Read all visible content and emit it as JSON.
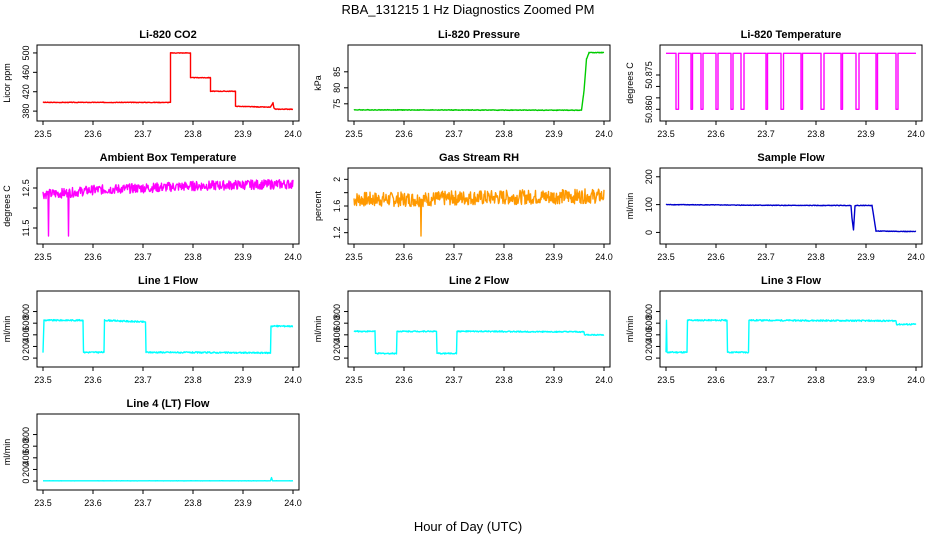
{
  "figure": {
    "title": "RBA_131215  1 Hz Diagnostics Zoomed PM",
    "xlabel": "Hour of Day (UTC)"
  },
  "chart_data": [
    {
      "type": "line",
      "title": "Li-820 CO2",
      "ylabel": "Licor ppm",
      "color": "#ff0000",
      "xlim": [
        23.5,
        24.0
      ],
      "ylim": [
        372,
        504
      ],
      "xticks": [
        "23.5",
        "23.6",
        "23.7",
        "23.8",
        "23.9",
        "24.0"
      ],
      "yticks": [
        380,
        420,
        460,
        500
      ],
      "noise": 0.6,
      "x": [
        23.5,
        23.755,
        23.755,
        23.795,
        23.795,
        23.835,
        23.835,
        23.885,
        23.885,
        23.955,
        23.96,
        23.962,
        23.965,
        24.0
      ],
      "y": [
        398,
        398,
        500,
        500,
        449,
        449,
        421,
        421,
        390,
        388,
        397,
        386,
        384,
        384
      ]
    },
    {
      "type": "line",
      "title": "Li-820 Pressure",
      "ylabel": "kPa",
      "color": "#00cc00",
      "xlim": [
        23.5,
        24.0
      ],
      "ylim": [
        71.5,
        91.5
      ],
      "xticks": [
        "23.5",
        "23.6",
        "23.7",
        "23.8",
        "23.9",
        "24.0"
      ],
      "yticks": [
        75,
        80,
        85
      ],
      "noise": 0.1,
      "x": [
        23.5,
        23.945,
        23.955,
        23.96,
        23.965,
        23.97,
        24.0
      ],
      "y": [
        73.1,
        73.0,
        73.0,
        79,
        89,
        91,
        91
      ]
    },
    {
      "type": "line",
      "title": "Li-820 Temperature",
      "ylabel": "degrees C",
      "color": "#ff00ff",
      "xlim": [
        23.5,
        24.0
      ],
      "ylim": [
        50.8575,
        50.8855
      ],
      "xticks": [
        "23.5",
        "23.6",
        "23.7",
        "23.8",
        "23.9",
        "24.0"
      ],
      "yticks": [
        50.86,
        50.865,
        50.87,
        50.875
      ],
      "ytick_labels": [
        "50.860",
        "",
        "",
        "50.875"
      ],
      "noise": 0,
      "x": [
        23.5,
        23.52,
        23.52,
        23.525,
        23.525,
        23.55,
        23.55,
        23.553,
        23.553,
        23.57,
        23.57,
        23.574,
        23.574,
        23.6,
        23.6,
        23.604,
        23.604,
        23.63,
        23.63,
        23.634,
        23.634,
        23.65,
        23.65,
        23.656,
        23.656,
        23.7,
        23.7,
        23.703,
        23.703,
        23.73,
        23.73,
        23.735,
        23.735,
        23.77,
        23.77,
        23.773,
        23.773,
        23.81,
        23.81,
        23.816,
        23.816,
        23.85,
        23.85,
        23.853,
        23.853,
        23.88,
        23.88,
        23.886,
        23.886,
        23.92,
        23.92,
        23.923,
        23.923,
        23.96,
        23.96,
        23.964,
        23.964,
        24.0
      ],
      "y": [
        50.8845,
        50.8845,
        50.86,
        50.86,
        50.8845,
        50.8845,
        50.86,
        50.86,
        50.8845,
        50.8845,
        50.86,
        50.86,
        50.8845,
        50.8845,
        50.86,
        50.86,
        50.8845,
        50.8845,
        50.86,
        50.86,
        50.8845,
        50.8845,
        50.86,
        50.86,
        50.8845,
        50.8845,
        50.86,
        50.86,
        50.8845,
        50.8845,
        50.86,
        50.86,
        50.8845,
        50.8845,
        50.86,
        50.86,
        50.8845,
        50.8845,
        50.86,
        50.86,
        50.8845,
        50.8845,
        50.86,
        50.86,
        50.8845,
        50.8845,
        50.86,
        50.86,
        50.8845,
        50.8845,
        50.86,
        50.86,
        50.8845,
        50.8845,
        50.86,
        50.86,
        50.8845,
        50.8845
      ]
    },
    {
      "type": "line",
      "title": "Ambient Box Temperature",
      "ylabel": "degrees C",
      "color": "#ff00ff",
      "xlim": [
        23.5,
        24.0
      ],
      "ylim": [
        11.25,
        12.85
      ],
      "xticks": [
        "23.5",
        "23.6",
        "23.7",
        "23.8",
        "23.9",
        "24.0"
      ],
      "yticks": [
        11.5,
        12.0,
        12.5
      ],
      "ytick_labels": [
        "11.5",
        "",
        "12.5"
      ],
      "noise": 0.12,
      "x": [
        23.5,
        23.51,
        23.511,
        23.512,
        23.55,
        23.551,
        23.552,
        23.6,
        23.7,
        23.8,
        23.9,
        24.0
      ],
      "y": [
        12.35,
        12.35,
        11.3,
        12.35,
        12.38,
        11.3,
        12.38,
        12.45,
        12.5,
        12.55,
        12.58,
        12.6
      ]
    },
    {
      "type": "line",
      "title": "Gas Stream RH",
      "ylabel": "percent",
      "color": "#ff9900",
      "xlim": [
        23.5,
        24.0
      ],
      "ylim": [
        1.12,
        2.08
      ],
      "xticks": [
        "23.5",
        "23.6",
        "23.7",
        "23.8",
        "23.9",
        "24.0"
      ],
      "yticks": [
        1.2,
        1.6,
        2.0
      ],
      "yminor": [
        1.4,
        1.8
      ],
      "noise": 0.11,
      "x": [
        23.5,
        23.633,
        23.634,
        23.635,
        23.7,
        23.8,
        23.9,
        24.0
      ],
      "y": [
        1.7,
        1.7,
        1.15,
        1.7,
        1.72,
        1.73,
        1.74,
        1.75
      ]
    },
    {
      "type": "line",
      "title": "Sample Flow",
      "ylabel": "ml/min",
      "color": "#0000cc",
      "xlim": [
        23.5,
        24.0
      ],
      "ylim": [
        -20,
        210
      ],
      "xticks": [
        "23.5",
        "23.6",
        "23.7",
        "23.8",
        "23.9",
        "24.0"
      ],
      "yticks": [
        0,
        100,
        200
      ],
      "noise": 1.0,
      "x": [
        23.5,
        23.75,
        23.87,
        23.872,
        23.875,
        23.878,
        23.88,
        23.912,
        23.92,
        24.0
      ],
      "y": [
        100,
        97,
        97,
        50,
        10,
        95,
        97,
        97,
        5,
        3
      ]
    },
    {
      "type": "line",
      "title": "Line 1 Flow",
      "ylabel": "ml/min",
      "color": "#00ffff",
      "xlim": [
        23.5,
        24.0
      ],
      "ylim": [
        -50,
        1050
      ],
      "xticks": [
        "23.5",
        "23.6",
        "23.7",
        "23.8",
        "23.9",
        "24.0"
      ],
      "yticks": [
        0,
        200,
        400,
        600,
        800
      ],
      "noise": 12,
      "x": [
        23.5,
        23.502,
        23.503,
        23.58,
        23.581,
        23.622,
        23.623,
        23.705,
        23.706,
        23.955,
        23.956,
        24.0
      ],
      "y": [
        100,
        650,
        650,
        650,
        100,
        100,
        650,
        620,
        100,
        90,
        550,
        550
      ]
    },
    {
      "type": "line",
      "title": "Line 2 Flow",
      "ylabel": "ml/min",
      "color": "#00ffff",
      "xlim": [
        23.5,
        24.0
      ],
      "ylim": [
        -50,
        1050
      ],
      "xticks": [
        "23.5",
        "23.6",
        "23.7",
        "23.8",
        "23.9",
        "24.0"
      ],
      "yticks": [
        0,
        200,
        400,
        600,
        800
      ],
      "noise": 10,
      "x": [
        23.5,
        23.542,
        23.543,
        23.585,
        23.586,
        23.665,
        23.666,
        23.705,
        23.706,
        23.96,
        23.961,
        24.0
      ],
      "y": [
        460,
        460,
        80,
        80,
        460,
        460,
        80,
        80,
        460,
        450,
        400,
        400
      ]
    },
    {
      "type": "line",
      "title": "Line 3 Flow",
      "ylabel": "ml/min",
      "color": "#00ffff",
      "xlim": [
        23.5,
        24.0
      ],
      "ylim": [
        -50,
        1050
      ],
      "xticks": [
        "23.5",
        "23.6",
        "23.7",
        "23.8",
        "23.9",
        "24.0"
      ],
      "yticks": [
        0,
        200,
        400,
        600,
        800
      ],
      "noise": 12,
      "x": [
        23.5,
        23.501,
        23.502,
        23.542,
        23.543,
        23.622,
        23.623,
        23.665,
        23.666,
        23.96,
        23.961,
        24.0
      ],
      "y": [
        100,
        650,
        100,
        100,
        650,
        650,
        100,
        100,
        650,
        640,
        580,
        580
      ]
    },
    {
      "type": "line",
      "title": "Line 4 (LT) Flow",
      "ylabel": "ml/min",
      "color": "#00ffff",
      "xlim": [
        23.5,
        24.0
      ],
      "ylim": [
        -50,
        1050
      ],
      "xticks": [
        "23.5",
        "23.6",
        "23.7",
        "23.8",
        "23.9",
        "24.0"
      ],
      "yticks": [
        0,
        200,
        400,
        600,
        800
      ],
      "noise": 1,
      "x": [
        23.5,
        23.955,
        23.957,
        23.959,
        24.0
      ],
      "y": [
        5,
        5,
        60,
        5,
        5
      ]
    }
  ]
}
